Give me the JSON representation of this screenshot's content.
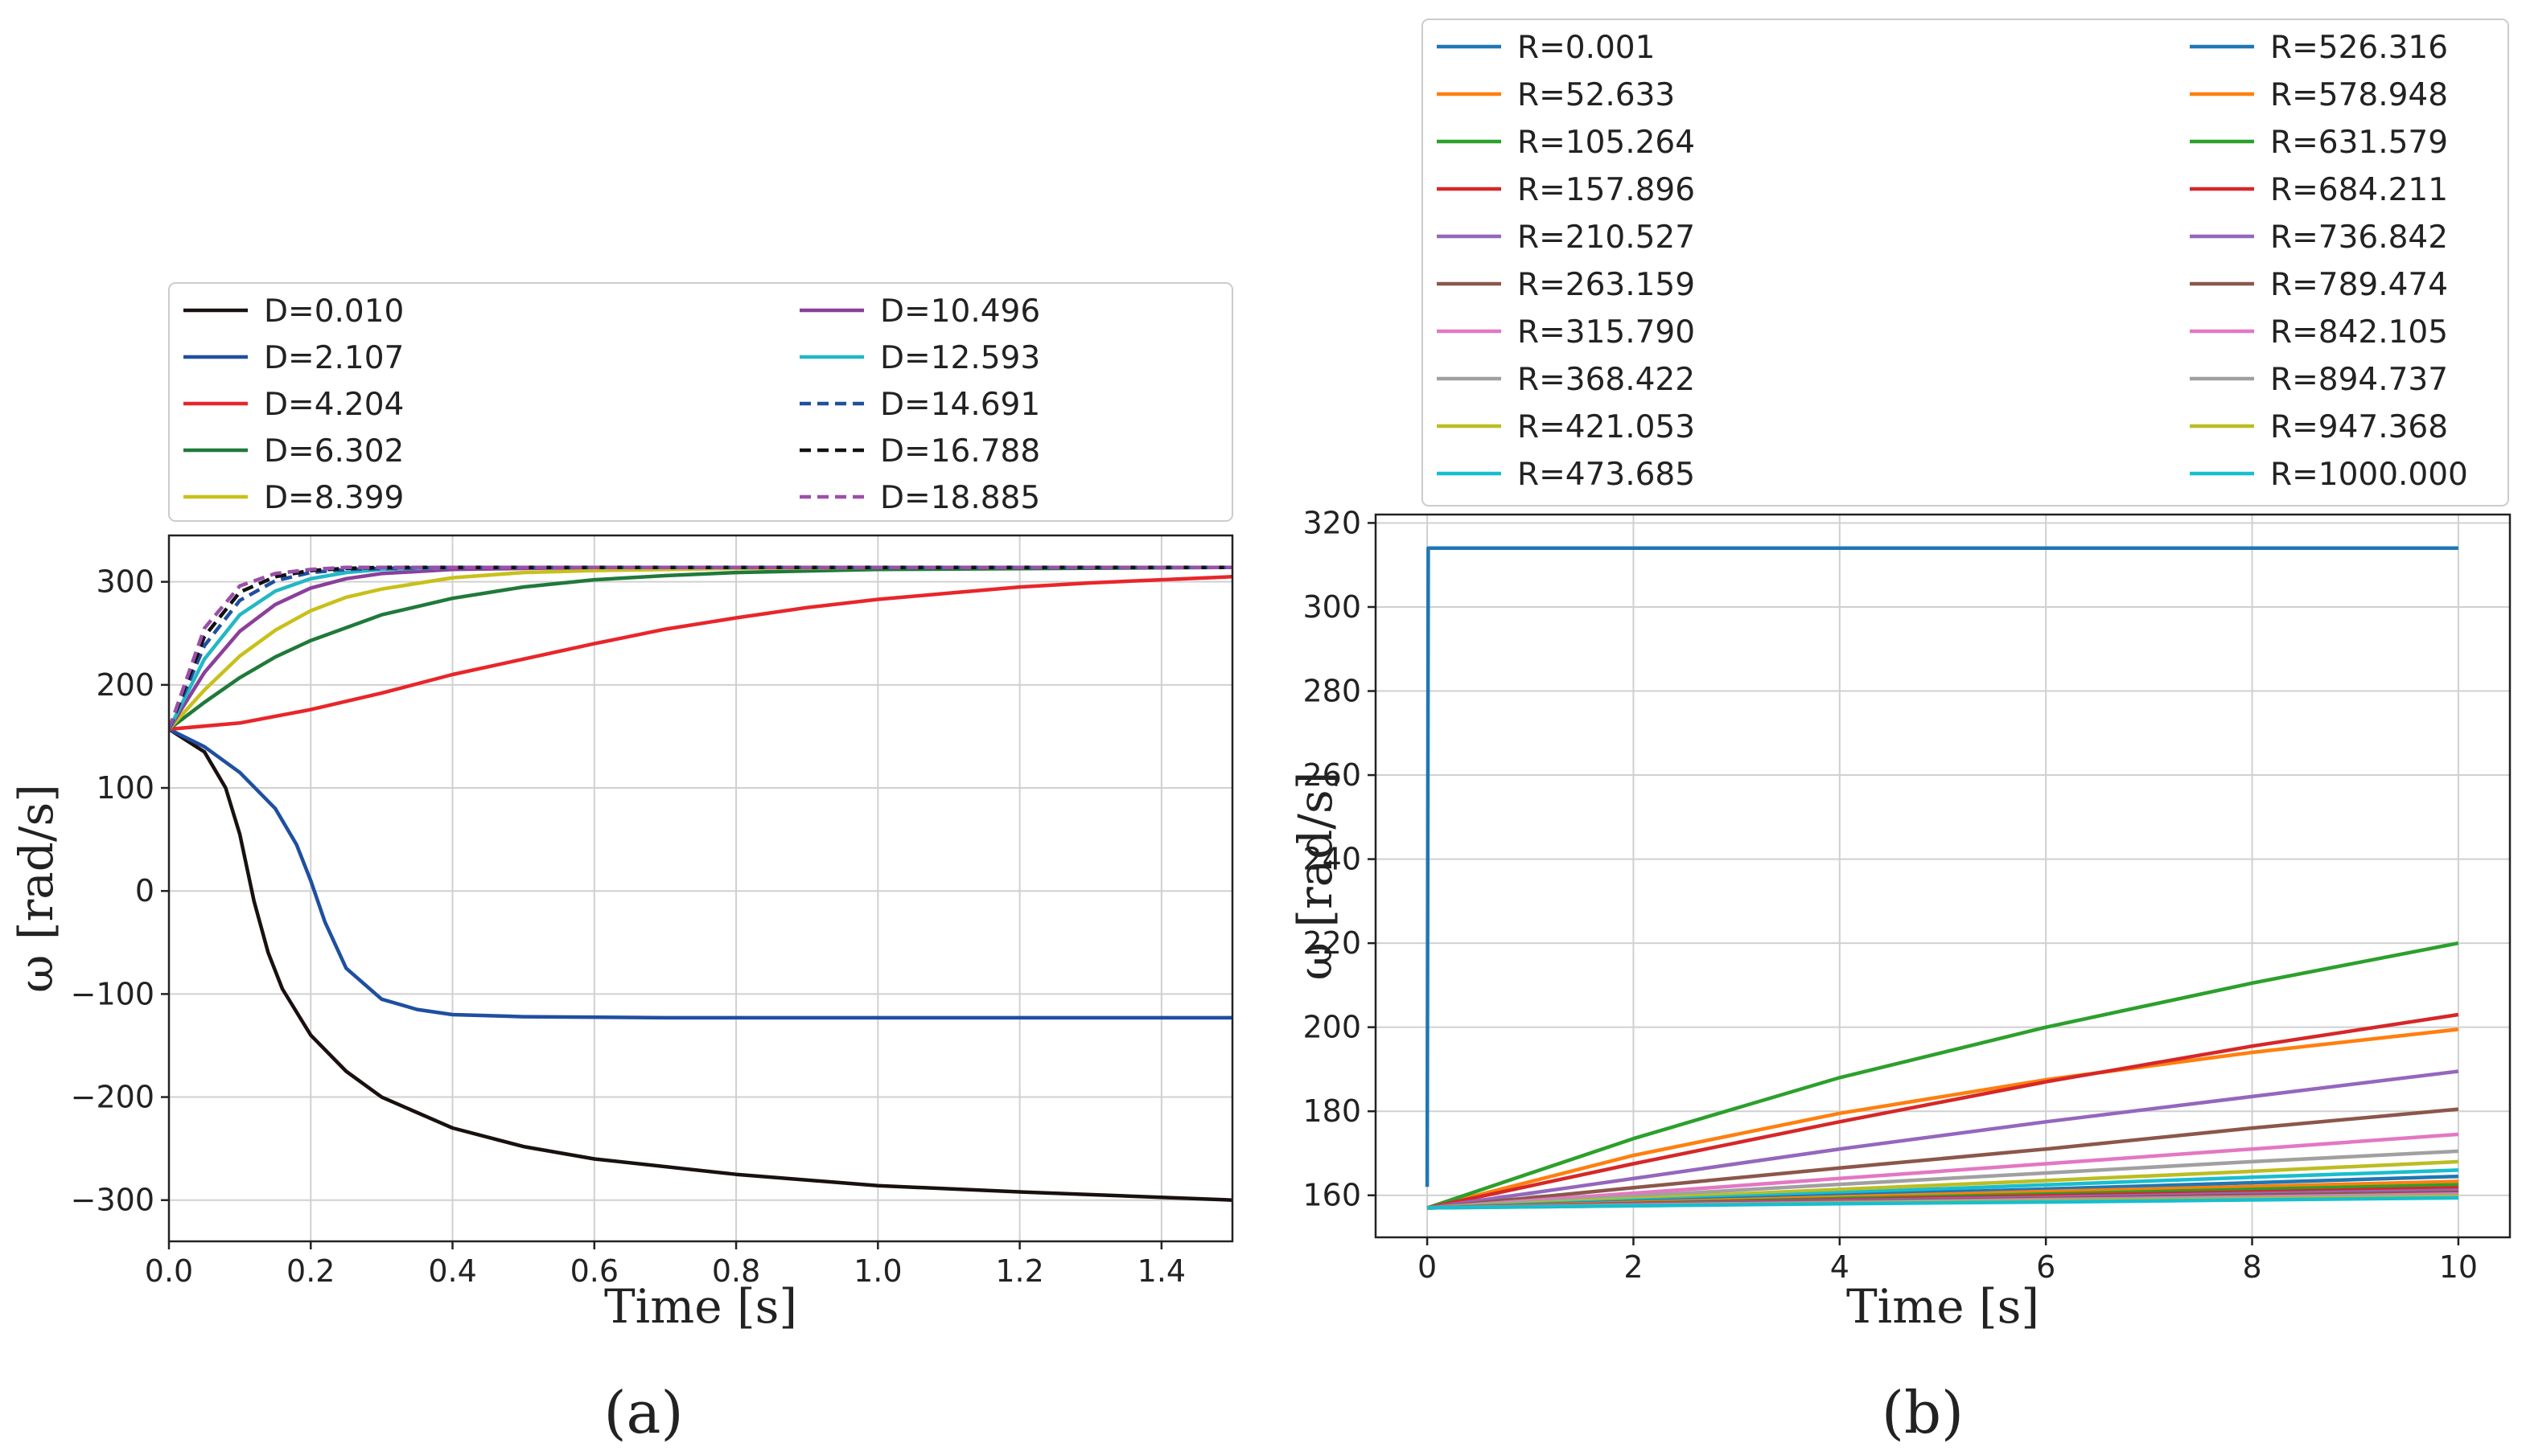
{
  "chart_data": [
    {
      "type": "line",
      "panel_label": "(a)",
      "xlabel": "Time [s]",
      "ylabel": "ω [rad/s]",
      "xlim": [
        0.0,
        1.5
      ],
      "ylim": [
        -340,
        345
      ],
      "xticks": [
        0.0,
        0.2,
        0.4,
        0.6,
        0.8,
        1.0,
        1.2,
        1.4
      ],
      "xtick_labels": [
        "0.0",
        "0.2",
        "0.4",
        "0.6",
        "0.8",
        "1.0",
        "1.2",
        "1.4"
      ],
      "yticks": [
        -300,
        -200,
        -100,
        0,
        100,
        200,
        300
      ],
      "ytick_labels": [
        "−300",
        "−200",
        "−100",
        "0",
        "100",
        "200",
        "300"
      ],
      "grid": true,
      "legend_position": "top (above axes), two columns",
      "series": [
        {
          "name": "D=0.010",
          "color": "#1a1010",
          "dash": "solid",
          "x": [
            0,
            0.05,
            0.08,
            0.1,
            0.12,
            0.14,
            0.16,
            0.2,
            0.25,
            0.3,
            0.4,
            0.5,
            0.6,
            0.8,
            1.0,
            1.2,
            1.5
          ],
          "y": [
            157,
            135,
            100,
            55,
            -10,
            -60,
            -95,
            -140,
            -175,
            -200,
            -230,
            -248,
            -260,
            -275,
            -286,
            -292,
            -300
          ]
        },
        {
          "name": "D=2.107",
          "color": "#1f4fa0",
          "dash": "solid",
          "x": [
            0,
            0.05,
            0.1,
            0.15,
            0.18,
            0.2,
            0.22,
            0.25,
            0.3,
            0.35,
            0.4,
            0.5,
            0.7,
            1.0,
            1.5
          ],
          "y": [
            157,
            140,
            115,
            80,
            45,
            10,
            -30,
            -75,
            -105,
            -115,
            -120,
            -122,
            -123,
            -123,
            -123
          ]
        },
        {
          "name": "D=4.204",
          "color": "#e8262a",
          "dash": "solid",
          "x": [
            0,
            0.1,
            0.2,
            0.3,
            0.4,
            0.5,
            0.6,
            0.7,
            0.8,
            0.9,
            1.0,
            1.1,
            1.2,
            1.3,
            1.4,
            1.5
          ],
          "y": [
            157,
            163,
            176,
            192,
            210,
            225,
            240,
            254,
            265,
            275,
            283,
            289,
            295,
            299,
            302,
            305
          ]
        },
        {
          "name": "D=6.302",
          "color": "#1f7a3a",
          "dash": "solid",
          "x": [
            0,
            0.05,
            0.1,
            0.15,
            0.2,
            0.3,
            0.4,
            0.5,
            0.6,
            0.7,
            0.8,
            1.0,
            1.5
          ],
          "y": [
            157,
            183,
            207,
            227,
            243,
            268,
            284,
            295,
            302,
            306,
            309,
            312,
            314
          ]
        },
        {
          "name": "D=8.399",
          "color": "#c8c01a",
          "dash": "solid",
          "x": [
            0,
            0.05,
            0.1,
            0.15,
            0.2,
            0.25,
            0.3,
            0.4,
            0.5,
            0.6,
            0.8,
            1.0,
            1.5
          ],
          "y": [
            157,
            195,
            228,
            253,
            272,
            285,
            293,
            304,
            309,
            311,
            313,
            314,
            314
          ]
        },
        {
          "name": "D=10.496",
          "color": "#8b3f9a",
          "dash": "solid",
          "x": [
            0,
            0.05,
            0.1,
            0.15,
            0.2,
            0.25,
            0.3,
            0.4,
            0.5,
            0.6,
            0.8,
            1.5
          ],
          "y": [
            157,
            212,
            252,
            278,
            294,
            303,
            308,
            312,
            313,
            314,
            314,
            314
          ]
        },
        {
          "name": "D=12.593",
          "color": "#22b8c4",
          "dash": "solid",
          "x": [
            0,
            0.05,
            0.1,
            0.15,
            0.2,
            0.25,
            0.3,
            0.4,
            0.5,
            0.6,
            1.5
          ],
          "y": [
            157,
            225,
            268,
            291,
            303,
            309,
            312,
            314,
            314,
            314,
            314
          ]
        },
        {
          "name": "D=14.691",
          "color": "#1f4fa0",
          "dash": "dashed",
          "x": [
            0,
            0.05,
            0.1,
            0.15,
            0.2,
            0.25,
            0.3,
            0.4,
            0.5,
            1.5
          ],
          "y": [
            157,
            238,
            282,
            301,
            309,
            312,
            313,
            314,
            314,
            314
          ]
        },
        {
          "name": "D=16.788",
          "color": "#111111",
          "dash": "dashed",
          "x": [
            0,
            0.05,
            0.1,
            0.15,
            0.2,
            0.25,
            0.3,
            0.4,
            1.5
          ],
          "y": [
            157,
            247,
            290,
            305,
            311,
            313,
            314,
            314,
            314
          ]
        },
        {
          "name": "D=18.885",
          "color": "#9b4fa8",
          "dash": "dashed",
          "x": [
            0,
            0.05,
            0.1,
            0.15,
            0.2,
            0.25,
            0.3,
            0.4,
            1.5
          ],
          "y": [
            157,
            255,
            296,
            308,
            312,
            314,
            314,
            314,
            314
          ]
        }
      ]
    },
    {
      "type": "line",
      "panel_label": "(b)",
      "xlabel": "Time [s]",
      "ylabel": "ω [rad/s]",
      "xlim": [
        -0.5,
        10.5
      ],
      "ylim": [
        150,
        322
      ],
      "xticks": [
        0,
        2,
        4,
        6,
        8,
        10
      ],
      "xtick_labels": [
        "0",
        "2",
        "4",
        "6",
        "8",
        "10"
      ],
      "yticks": [
        160,
        180,
        200,
        220,
        240,
        260,
        280,
        300,
        320
      ],
      "ytick_labels": [
        "160",
        "180",
        "200",
        "220",
        "240",
        "260",
        "280",
        "300",
        "320"
      ],
      "grid": true,
      "legend_position": "top (above axes), two columns",
      "series": [
        {
          "name": "R=0.001",
          "color": "#1f77b4",
          "x": [
            0,
            0.005,
            0.01,
            10
          ],
          "y": [
            162,
            230,
            314,
            314
          ]
        },
        {
          "name": "R=52.633",
          "color": "#ff7f0e",
          "x": [
            0,
            2,
            4,
            6,
            8,
            10
          ],
          "y": [
            157,
            169.5,
            179.5,
            187.5,
            194,
            199.5
          ]
        },
        {
          "name": "R=105.264",
          "color": "#2ca02c",
          "x": [
            0,
            2,
            4,
            6,
            8,
            10
          ],
          "y": [
            157,
            173.5,
            188,
            200,
            210.5,
            220
          ]
        },
        {
          "name": "R=157.896",
          "color": "#d62728",
          "x": [
            0,
            2,
            4,
            6,
            8,
            10
          ],
          "y": [
            157,
            167.5,
            177.5,
            187,
            195.5,
            203
          ]
        },
        {
          "name": "R=210.527",
          "color": "#9467bd",
          "x": [
            0,
            2,
            4,
            6,
            8,
            10
          ],
          "y": [
            157,
            164,
            171,
            177.5,
            183.5,
            189.5
          ]
        },
        {
          "name": "R=263.159",
          "color": "#8c564b",
          "x": [
            0,
            2,
            4,
            6,
            8,
            10
          ],
          "y": [
            157,
            161.8,
            166.5,
            171,
            176,
            180.5
          ]
        },
        {
          "name": "R=315.790",
          "color": "#e377c2",
          "x": [
            0,
            2,
            4,
            6,
            8,
            10
          ],
          "y": [
            157,
            160.5,
            164,
            167.5,
            171,
            174.5
          ]
        },
        {
          "name": "R=368.422",
          "color": "#a0a0a0",
          "x": [
            0,
            2,
            4,
            6,
            8,
            10
          ],
          "y": [
            157,
            159.8,
            162.6,
            165.3,
            168,
            170.5
          ]
        },
        {
          "name": "R=421.053",
          "color": "#bcbd22",
          "x": [
            0,
            2,
            4,
            6,
            8,
            10
          ],
          "y": [
            157,
            159.2,
            161.4,
            163.5,
            165.7,
            168
          ]
        },
        {
          "name": "R=473.685",
          "color": "#17becf",
          "x": [
            0,
            2,
            4,
            6,
            8,
            10
          ],
          "y": [
            157,
            158.8,
            160.6,
            162.5,
            164.3,
            166
          ]
        },
        {
          "name": "R=526.316",
          "color": "#1f77b4",
          "x": [
            0,
            2,
            4,
            6,
            8,
            10
          ],
          "y": [
            157,
            158.5,
            160,
            161.5,
            163,
            164.5
          ]
        },
        {
          "name": "R=578.948",
          "color": "#ff7f0e",
          "x": [
            0,
            2,
            4,
            6,
            8,
            10
          ],
          "y": [
            157,
            158.3,
            159.6,
            160.9,
            162.1,
            163.3
          ]
        },
        {
          "name": "R=631.579",
          "color": "#2ca02c",
          "x": [
            0,
            2,
            4,
            6,
            8,
            10
          ],
          "y": [
            157,
            158.1,
            159.2,
            160.3,
            161.4,
            162.5
          ]
        },
        {
          "name": "R=684.211",
          "color": "#d62728",
          "x": [
            0,
            2,
            4,
            6,
            8,
            10
          ],
          "y": [
            157,
            158,
            158.9,
            159.9,
            160.8,
            161.8
          ]
        },
        {
          "name": "R=736.842",
          "color": "#9467bd",
          "x": [
            0,
            2,
            4,
            6,
            8,
            10
          ],
          "y": [
            157,
            157.9,
            158.7,
            159.5,
            160.4,
            161.2
          ]
        },
        {
          "name": "R=789.474",
          "color": "#8c564b",
          "x": [
            0,
            2,
            4,
            6,
            8,
            10
          ],
          "y": [
            157,
            157.8,
            158.5,
            159.2,
            160,
            160.7
          ]
        },
        {
          "name": "R=842.105",
          "color": "#e377c2",
          "x": [
            0,
            2,
            4,
            6,
            8,
            10
          ],
          "y": [
            157,
            157.7,
            158.3,
            159,
            159.6,
            160.3
          ]
        },
        {
          "name": "R=894.737",
          "color": "#a0a0a0",
          "x": [
            0,
            2,
            4,
            6,
            8,
            10
          ],
          "y": [
            157,
            157.6,
            158.2,
            158.8,
            159.4,
            160
          ]
        },
        {
          "name": "R=947.368",
          "color": "#bcbd22",
          "x": [
            0,
            2,
            4,
            6,
            8,
            10
          ],
          "y": [
            157,
            157.5,
            158.1,
            158.6,
            159.1,
            159.7
          ]
        },
        {
          "name": "R=1000.000",
          "color": "#17becf",
          "x": [
            0,
            2,
            4,
            6,
            8,
            10
          ],
          "y": [
            157,
            157.5,
            158,
            158.4,
            158.9,
            159.4
          ]
        }
      ]
    }
  ]
}
